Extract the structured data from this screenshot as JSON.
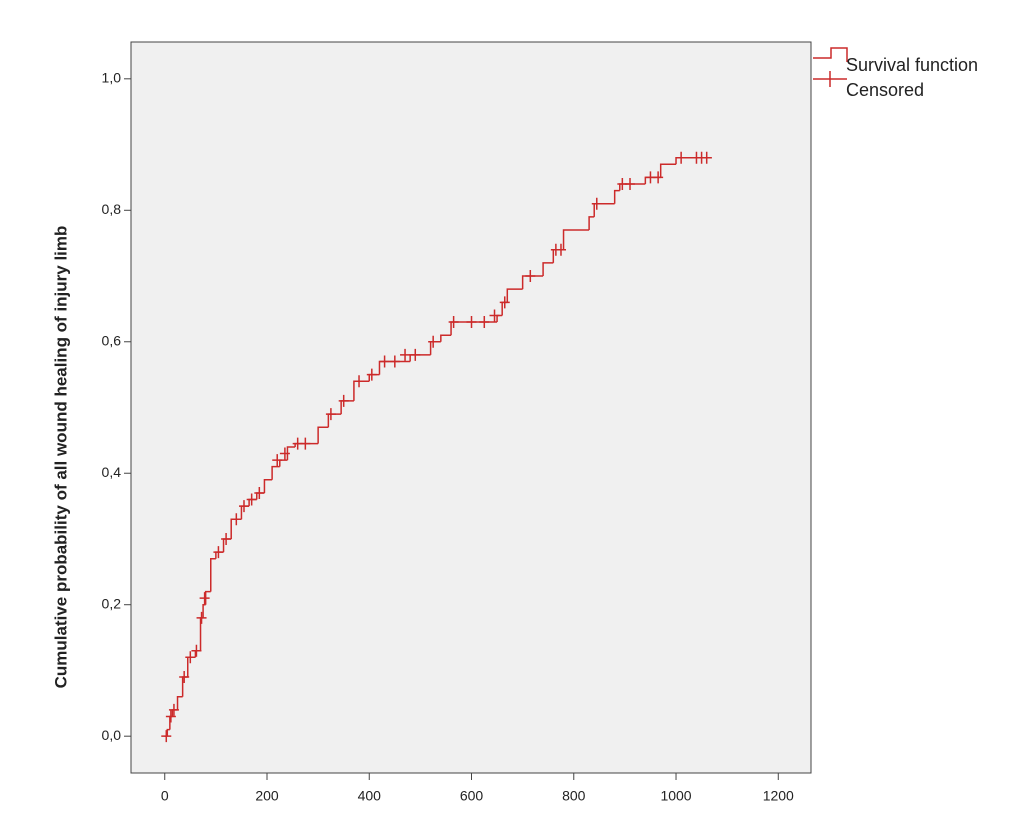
{
  "chart_data": {
    "type": "step",
    "y_label": "Cumulative probability of all wound healing of injury limb",
    "xlim": [
      -66,
      1264
    ],
    "ylim": [
      -0.056,
      1.056
    ],
    "xticks": [
      0,
      200,
      400,
      600,
      800,
      1000,
      1200
    ],
    "yticks": [
      {
        "value": 0,
        "label": "0,0"
      },
      {
        "value": 0.2,
        "label": "0,2"
      },
      {
        "value": 0.4,
        "label": "0,4"
      },
      {
        "value": 0.6,
        "label": "0,6"
      },
      {
        "value": 0.8,
        "label": "0,8"
      },
      {
        "value": 1.0,
        "label": "1,0"
      }
    ],
    "plot_background": "#f0f0f0",
    "legend": "outside-top-right",
    "series": [
      {
        "name": "Survival function",
        "type": "step",
        "color": "#cc2a2a",
        "x": [
          0,
          5,
          10,
          15,
          25,
          35,
          45,
          60,
          70,
          75,
          80,
          90,
          100,
          115,
          130,
          150,
          165,
          180,
          195,
          210,
          225,
          240,
          255,
          300,
          320,
          345,
          370,
          400,
          420,
          480,
          520,
          540,
          560,
          650,
          660,
          670,
          700,
          740,
          760,
          780,
          830,
          840,
          880,
          890,
          940,
          970,
          1000,
          1070
        ],
        "values": [
          0,
          0.01,
          0.03,
          0.04,
          0.06,
          0.09,
          0.12,
          0.13,
          0.18,
          0.2,
          0.22,
          0.27,
          0.28,
          0.3,
          0.33,
          0.35,
          0.36,
          0.37,
          0.39,
          0.41,
          0.42,
          0.44,
          0.445,
          0.47,
          0.49,
          0.51,
          0.54,
          0.55,
          0.57,
          0.58,
          0.6,
          0.61,
          0.63,
          0.64,
          0.66,
          0.68,
          0.7,
          0.72,
          0.74,
          0.77,
          0.79,
          0.81,
          0.83,
          0.84,
          0.85,
          0.87,
          0.88,
          0.88
        ]
      },
      {
        "name": "Censored",
        "type": "scatter",
        "marker": "+",
        "color": "#cc2a2a",
        "x": [
          3,
          12,
          18,
          38,
          50,
          62,
          72,
          78,
          105,
          120,
          140,
          155,
          170,
          185,
          220,
          235,
          260,
          275,
          325,
          350,
          380,
          405,
          430,
          450,
          470,
          490,
          525,
          565,
          600,
          625,
          645,
          665,
          715,
          765,
          775,
          845,
          895,
          910,
          950,
          965,
          1010,
          1040,
          1050,
          1060
        ],
        "values": [
          0,
          0.03,
          0.04,
          0.09,
          0.12,
          0.13,
          0.18,
          0.21,
          0.28,
          0.3,
          0.33,
          0.35,
          0.36,
          0.37,
          0.42,
          0.43,
          0.445,
          0.445,
          0.49,
          0.51,
          0.54,
          0.55,
          0.57,
          0.57,
          0.58,
          0.58,
          0.6,
          0.63,
          0.63,
          0.63,
          0.64,
          0.66,
          0.7,
          0.74,
          0.74,
          0.81,
          0.84,
          0.84,
          0.85,
          0.85,
          0.88,
          0.88,
          0.88,
          0.88
        ]
      }
    ]
  }
}
